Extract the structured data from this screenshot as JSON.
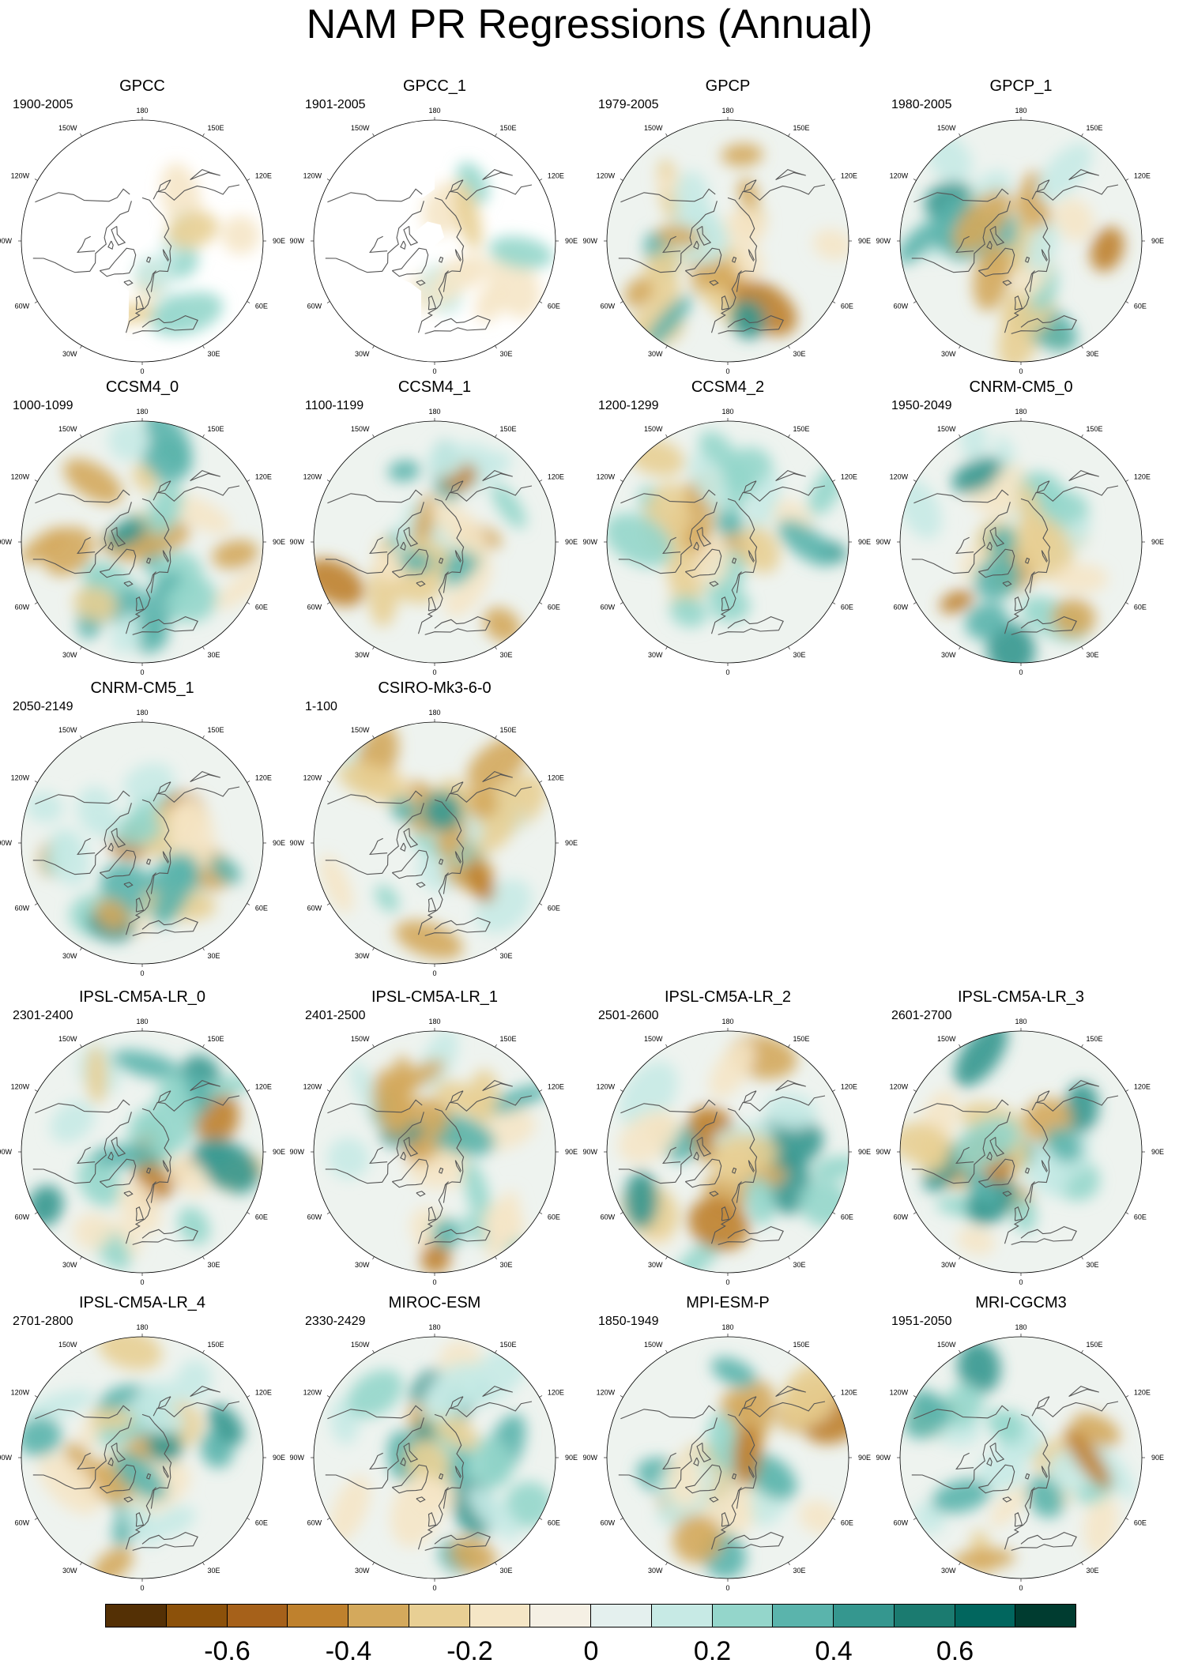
{
  "title": "NAM PR Regressions (Annual)",
  "lon_labels": [
    "180",
    "150E",
    "120E",
    "90E",
    "60E",
    "30E",
    "0",
    "30W",
    "60W",
    "90W",
    "120W",
    "150W"
  ],
  "rows": [
    [
      {
        "name": "GPCC",
        "period": "1900-2005",
        "missing": true
      },
      {
        "name": "GPCC_1",
        "period": "1901-2005",
        "missing": true
      },
      {
        "name": "GPCP",
        "period": "1979-2005",
        "missing": false
      },
      {
        "name": "GPCP_1",
        "period": "1980-2005",
        "missing": false
      }
    ],
    [
      {
        "name": "CCSM4_0",
        "period": "1000-1099",
        "missing": false
      },
      {
        "name": "CCSM4_1",
        "period": "1100-1199",
        "missing": false
      },
      {
        "name": "CCSM4_2",
        "period": "1200-1299",
        "missing": false
      },
      {
        "name": "CNRM-CM5_0",
        "period": "1950-2049",
        "missing": false
      }
    ],
    [
      {
        "name": "CNRM-CM5_1",
        "period": "2050-2149",
        "missing": false
      },
      {
        "name": "CSIRO-Mk3-6-0",
        "period": "1-100",
        "missing": false
      }
    ],
    [
      {
        "name": "IPSL-CM5A-LR_0",
        "period": "2301-2400",
        "missing": false
      },
      {
        "name": "IPSL-CM5A-LR_1",
        "period": "2401-2500",
        "missing": false
      },
      {
        "name": "IPSL-CM5A-LR_2",
        "period": "2501-2600",
        "missing": false
      },
      {
        "name": "IPSL-CM5A-LR_3",
        "period": "2601-2700",
        "missing": false
      }
    ],
    [
      {
        "name": "IPSL-CM5A-LR_4",
        "period": "2701-2800",
        "missing": false
      },
      {
        "name": "MIROC-ESM",
        "period": "2330-2429",
        "missing": false
      },
      {
        "name": "MPI-ESM-P",
        "period": "1850-1949",
        "missing": false
      },
      {
        "name": "MRI-CGCM3",
        "period": "1951-2050",
        "missing": false
      }
    ]
  ],
  "colorbar": {
    "colors": [
      "#543005",
      "#8c510a",
      "#a6611a",
      "#bf812d",
      "#d4a95c",
      "#e8cf94",
      "#f5e6c6",
      "#f5f0e4",
      "#e4f0ee",
      "#c7eae5",
      "#94d6cb",
      "#5ab4ac",
      "#35978f",
      "#1b7b70",
      "#01665e",
      "#003c30"
    ],
    "tick_labels": [
      "-0.6",
      "-0.4",
      "-0.2",
      "0",
      "0.2",
      "0.4",
      "0.6"
    ]
  },
  "colors": {
    "coastline": "#555555",
    "frame": "#000000",
    "missing": "#ffffff",
    "neutral_fill": "#eef3ef"
  }
}
